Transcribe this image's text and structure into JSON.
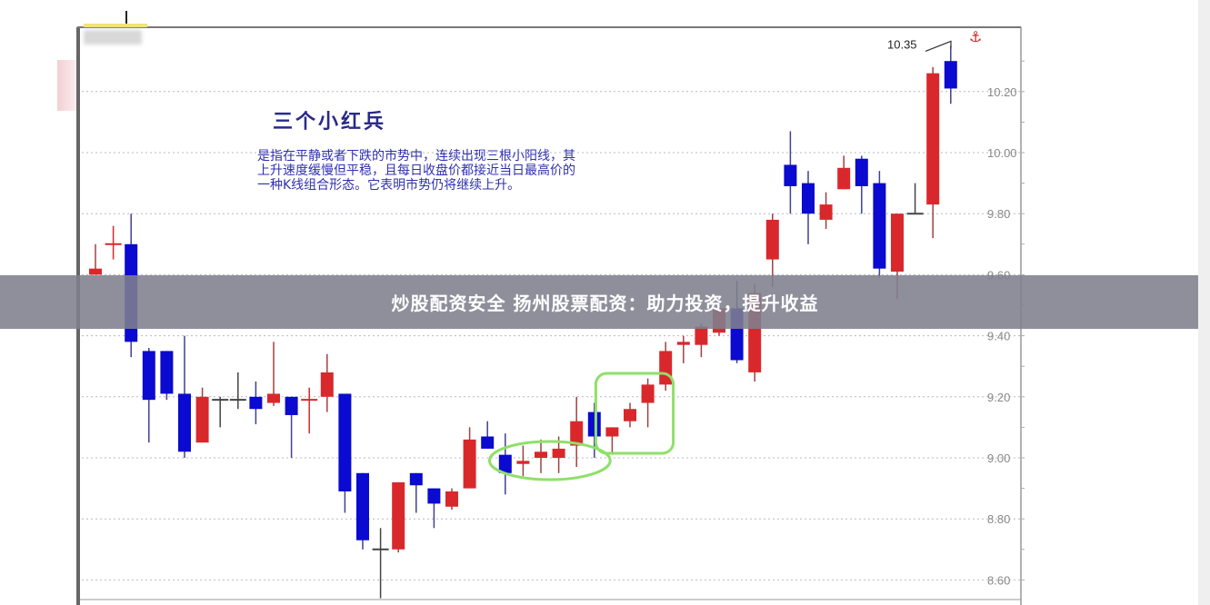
{
  "chart_data": {
    "type": "candlestick",
    "title": "三个小红兵",
    "description_text": "是指在平静或者下跌的市势中，连续出现三根小阳线，其上升速度缓慢但平稳，且每日收盘价都接近当日最高价的一种K线组合形态。它表明市势仍将继续上升。",
    "ylim": [
      8.55,
      10.45
    ],
    "y_ticks": [
      "8.60",
      "8.80",
      "9.00",
      "9.20",
      "9.40",
      "9.60",
      "9.80",
      "10.00",
      "10.20"
    ],
    "grid": true,
    "annotation": {
      "label": "10.35",
      "value": 10.35
    },
    "colors": {
      "up": "#d9282c",
      "down": "#0a0ad0",
      "doji": "#444444",
      "highlight": "#8fe06a"
    },
    "highlight_groups": [
      [
        24,
        27
      ],
      [
        29,
        31
      ]
    ],
    "candles": [
      {
        "o": 9.6,
        "h": 9.7,
        "l": 9.6,
        "c": 9.62
      },
      {
        "o": 9.7,
        "h": 9.76,
        "l": 9.65,
        "c": 9.7,
        "up": true
      },
      {
        "o": 9.7,
        "h": 9.8,
        "l": 9.33,
        "c": 9.38
      },
      {
        "o": 9.35,
        "h": 9.36,
        "l": 9.05,
        "c": 9.19
      },
      {
        "o": 9.35,
        "h": 9.35,
        "l": 9.19,
        "c": 9.21
      },
      {
        "o": 9.21,
        "h": 9.4,
        "l": 9.0,
        "c": 9.02
      },
      {
        "o": 9.05,
        "h": 9.23,
        "l": 9.05,
        "c": 9.2
      },
      {
        "o": 9.19,
        "h": 9.2,
        "l": 9.1,
        "c": 9.19
      },
      {
        "o": 9.19,
        "h": 9.28,
        "l": 9.16,
        "c": 9.19
      },
      {
        "o": 9.2,
        "h": 9.25,
        "l": 9.11,
        "c": 9.16
      },
      {
        "o": 9.18,
        "h": 9.38,
        "l": 9.17,
        "c": 9.21
      },
      {
        "o": 9.2,
        "h": 9.2,
        "l": 9.0,
        "c": 9.14
      },
      {
        "o": 9.19,
        "h": 9.23,
        "l": 9.08,
        "c": 9.19,
        "up": true
      },
      {
        "o": 9.2,
        "h": 9.34,
        "l": 9.15,
        "c": 9.28
      },
      {
        "o": 9.21,
        "h": 9.21,
        "l": 8.82,
        "c": 8.89
      },
      {
        "o": 8.95,
        "h": 8.95,
        "l": 8.7,
        "c": 8.73
      },
      {
        "o": 8.7,
        "h": 8.77,
        "l": 8.54,
        "c": 8.7
      },
      {
        "o": 8.7,
        "h": 8.92,
        "l": 8.69,
        "c": 8.92
      },
      {
        "o": 8.95,
        "h": 8.95,
        "l": 8.82,
        "c": 8.91
      },
      {
        "o": 8.9,
        "h": 8.9,
        "l": 8.77,
        "c": 8.85
      },
      {
        "o": 8.84,
        "h": 8.9,
        "l": 8.83,
        "c": 8.89
      },
      {
        "o": 8.9,
        "h": 9.1,
        "l": 8.9,
        "c": 9.06
      },
      {
        "o": 9.07,
        "h": 9.12,
        "l": 9.03,
        "c": 9.03
      },
      {
        "o": 9.01,
        "h": 9.08,
        "l": 8.88,
        "c": 8.95
      },
      {
        "o": 8.98,
        "h": 9.04,
        "l": 8.94,
        "c": 8.99
      },
      {
        "o": 9.0,
        "h": 9.06,
        "l": 8.95,
        "c": 9.02
      },
      {
        "o": 9.0,
        "h": 9.07,
        "l": 8.95,
        "c": 9.03
      },
      {
        "o": 9.04,
        "h": 9.2,
        "l": 8.97,
        "c": 9.12
      },
      {
        "o": 9.15,
        "h": 9.18,
        "l": 9.0,
        "c": 9.07
      },
      {
        "o": 9.07,
        "h": 9.1,
        "l": 9.01,
        "c": 9.1
      },
      {
        "o": 9.12,
        "h": 9.18,
        "l": 9.1,
        "c": 9.16
      },
      {
        "o": 9.18,
        "h": 9.26,
        "l": 9.1,
        "c": 9.24
      },
      {
        "o": 9.24,
        "h": 9.38,
        "l": 9.22,
        "c": 9.35
      },
      {
        "o": 9.37,
        "h": 9.4,
        "l": 9.31,
        "c": 9.38
      },
      {
        "o": 9.37,
        "h": 9.44,
        "l": 9.33,
        "c": 9.43
      },
      {
        "o": 9.41,
        "h": 9.51,
        "l": 9.4,
        "c": 9.49
      },
      {
        "o": 9.49,
        "h": 9.58,
        "l": 9.31,
        "c": 9.32
      },
      {
        "o": 9.28,
        "h": 9.57,
        "l": 9.25,
        "c": 9.54
      },
      {
        "o": 9.65,
        "h": 9.8,
        "l": 9.56,
        "c": 9.78
      },
      {
        "o": 9.96,
        "h": 10.07,
        "l": 9.8,
        "c": 9.89
      },
      {
        "o": 9.9,
        "h": 9.94,
        "l": 9.7,
        "c": 9.8
      },
      {
        "o": 9.78,
        "h": 9.87,
        "l": 9.75,
        "c": 9.83
      },
      {
        "o": 9.88,
        "h": 9.99,
        "l": 9.88,
        "c": 9.95
      },
      {
        "o": 9.98,
        "h": 9.99,
        "l": 9.8,
        "c": 9.89
      },
      {
        "o": 9.9,
        "h": 9.94,
        "l": 9.59,
        "c": 9.62
      },
      {
        "o": 9.61,
        "h": 9.8,
        "l": 9.52,
        "c": 9.8
      },
      {
        "o": 9.8,
        "h": 9.9,
        "l": 9.8,
        "c": 9.8
      },
      {
        "o": 9.83,
        "h": 10.28,
        "l": 9.72,
        "c": 10.26
      },
      {
        "o": 10.3,
        "h": 10.35,
        "l": 10.16,
        "c": 10.21
      }
    ]
  },
  "banner": {
    "text": "炒股配资安全 扬州股票配资：助力投资，提升收益"
  },
  "icons": {
    "top_right": "anchor-icon"
  }
}
